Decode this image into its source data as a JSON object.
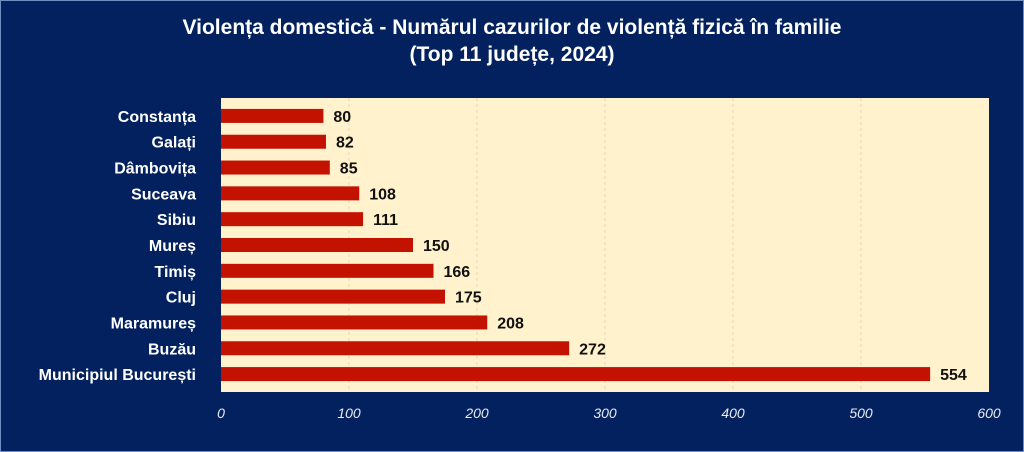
{
  "chart_data": {
    "type": "bar",
    "orientation": "horizontal",
    "title": "Violența domestică - Numărul cazurilor de violență fizică în familie",
    "subtitle": "(Top 11 județe, 2024)",
    "categories": [
      "Constanța",
      "Galați",
      "Dâmbovița",
      "Suceava",
      "Sibiu",
      "Mureș",
      "Timiș",
      "Cluj",
      "Maramureș",
      "Buzău",
      "Municipiul București"
    ],
    "values": [
      80,
      82,
      85,
      108,
      111,
      150,
      166,
      175,
      208,
      272,
      554
    ],
    "xlabel": "",
    "ylabel": "",
    "xlim": [
      0,
      600
    ],
    "xticks": [
      "0",
      "100",
      "200",
      "300",
      "400",
      "500",
      "600"
    ],
    "grid": true,
    "legend": "none",
    "colors": {
      "bar": "#c41200",
      "plot_bg": "#fff2cc",
      "background": "#02215e"
    }
  }
}
